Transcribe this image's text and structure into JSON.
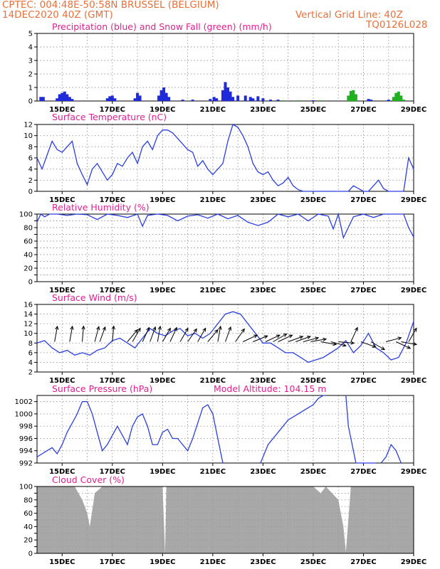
{
  "header": {
    "line1": "CPTEC:  004:48E-50:58N  BRUSSEL (BELGIUM)",
    "line2": "14DEC2020 40Z (GMT)",
    "grid_note": "Vertical Grid Line: 40Z",
    "product_code": "TQ0126L028"
  },
  "x_axis": {
    "labels": [
      "15DEC",
      "17DEC",
      "19DEC",
      "21DEC",
      "23DEC",
      "25DEC",
      "27DEC",
      "29DEC"
    ],
    "day_positions": [
      1,
      3,
      5,
      7,
      9,
      11,
      13,
      15
    ],
    "day_range": [
      0,
      15
    ]
  },
  "colors": {
    "header": "#e8703a",
    "title": "#e0208f",
    "line": "#2a3fe0",
    "precip": "#1f2bd8",
    "snow": "#20b020",
    "cloud": "#a8a8a8"
  },
  "chart_data": [
    {
      "key": "precip",
      "type": "bar",
      "title": "Precipitation (blue) and Snow Fall (green) (mm/h)",
      "ylim": [
        0,
        5
      ],
      "yticks": [
        0,
        1,
        2,
        3,
        4,
        5
      ],
      "series": [
        {
          "name": "Precipitation",
          "color": "blue",
          "points": [
            [
              0.15,
              0.3
            ],
            [
              0.25,
              0.3
            ],
            [
              0.8,
              0.2
            ],
            [
              0.9,
              0.5
            ],
            [
              1.0,
              0.6
            ],
            [
              1.1,
              0.7
            ],
            [
              1.2,
              0.5
            ],
            [
              1.3,
              0.3
            ],
            [
              1.4,
              0.15
            ],
            [
              2.8,
              0.2
            ],
            [
              2.9,
              0.35
            ],
            [
              3.0,
              0.4
            ],
            [
              3.1,
              0.2
            ],
            [
              3.9,
              0.2
            ],
            [
              4.0,
              0.6
            ],
            [
              4.1,
              0.4
            ],
            [
              4.85,
              0.4
            ],
            [
              4.95,
              0.8
            ],
            [
              5.05,
              1.0
            ],
            [
              5.15,
              0.6
            ],
            [
              5.25,
              0.3
            ],
            [
              5.8,
              0.1
            ],
            [
              6.2,
              0.1
            ],
            [
              6.9,
              0.15
            ],
            [
              7.05,
              0.3
            ],
            [
              7.15,
              0.2
            ],
            [
              7.4,
              0.8
            ],
            [
              7.5,
              1.4
            ],
            [
              7.6,
              1.0
            ],
            [
              7.7,
              0.7
            ],
            [
              7.8,
              0.3
            ],
            [
              8.0,
              0.4
            ],
            [
              8.3,
              0.4
            ],
            [
              8.5,
              0.3
            ],
            [
              8.6,
              0.2
            ],
            [
              8.8,
              0.35
            ],
            [
              9.0,
              0.2
            ],
            [
              9.3,
              0.1
            ],
            [
              9.6,
              0.1
            ],
            [
              11.0,
              0.05
            ],
            [
              13.2,
              0.15
            ],
            [
              13.3,
              0.1
            ],
            [
              14.0,
              0.1
            ]
          ]
        },
        {
          "name": "Snow Fall",
          "color": "green",
          "points": [
            [
              9.8,
              0.05
            ],
            [
              10.4,
              0.05
            ],
            [
              11.3,
              0.05
            ],
            [
              12.4,
              0.4
            ],
            [
              12.5,
              0.75
            ],
            [
              12.6,
              0.8
            ],
            [
              12.7,
              0.5
            ],
            [
              14.2,
              0.3
            ],
            [
              14.3,
              0.6
            ],
            [
              14.4,
              0.7
            ],
            [
              14.5,
              0.4
            ],
            [
              14.6,
              0.1
            ]
          ]
        }
      ]
    },
    {
      "key": "temp",
      "type": "line",
      "title": "Surface Temperature (nC)",
      "ylim": [
        0,
        12
      ],
      "yticks": [
        0,
        2,
        4,
        6,
        8,
        10,
        12
      ],
      "x": [
        0,
        0.2,
        0.4,
        0.6,
        0.8,
        1.0,
        1.2,
        1.4,
        1.6,
        1.8,
        2.0,
        2.2,
        2.4,
        2.6,
        2.8,
        3.0,
        3.2,
        3.4,
        3.6,
        3.8,
        4.0,
        4.2,
        4.4,
        4.6,
        4.8,
        5.0,
        5.2,
        5.4,
        5.6,
        5.8,
        6.0,
        6.2,
        6.4,
        6.6,
        6.8,
        7.0,
        7.2,
        7.4,
        7.6,
        7.8,
        8.0,
        8.2,
        8.4,
        8.6,
        8.8,
        9.0,
        9.2,
        9.4,
        9.6,
        9.8,
        10.0,
        10.2,
        10.4,
        10.6,
        10.8,
        11.0,
        11.2,
        11.4,
        11.6,
        11.8,
        12.0,
        12.2,
        12.4,
        12.6,
        12.8,
        13.0,
        13.2,
        13.4,
        13.6,
        13.8,
        14.0,
        14.2,
        14.4,
        14.6,
        14.8,
        15.0
      ],
      "y": [
        6,
        4,
        6.5,
        9,
        7.5,
        7,
        8,
        9,
        5,
        3,
        1.2,
        4,
        5,
        3.5,
        2,
        3,
        5,
        4.5,
        6,
        7,
        5,
        8,
        9,
        7.5,
        10,
        11,
        11,
        10.5,
        9.5,
        8.5,
        7.5,
        7,
        4.5,
        5.5,
        4,
        3,
        4,
        5,
        9,
        12,
        11.5,
        10,
        8,
        5,
        3.5,
        3,
        3.5,
        2,
        1,
        1.5,
        2.5,
        1,
        0.3,
        0,
        0,
        0,
        0,
        0,
        0,
        0,
        0,
        0,
        0,
        1,
        0.5,
        0,
        0,
        1,
        2,
        0.5,
        0,
        0,
        0,
        0,
        6,
        4
      ]
    },
    {
      "key": "rh",
      "type": "line",
      "title": "Relative Humidity (%)",
      "ylim": [
        0,
        100
      ],
      "yticks": [
        0,
        10,
        20,
        30,
        40,
        50,
        60,
        70,
        80,
        90,
        100
      ],
      "x": [
        0,
        0.15,
        0.3,
        0.5,
        0.8,
        1.2,
        1.6,
        2.0,
        2.4,
        2.8,
        3.2,
        3.6,
        4.0,
        4.2,
        4.4,
        4.8,
        5.2,
        5.6,
        6.0,
        6.4,
        6.8,
        7.2,
        7.6,
        8.0,
        8.4,
        8.8,
        9.2,
        9.6,
        10.0,
        10.4,
        10.8,
        11.2,
        11.6,
        11.8,
        12.0,
        12.2,
        12.6,
        13.0,
        13.4,
        13.8,
        14.2,
        14.6,
        14.8,
        15.0
      ],
      "y": [
        88,
        100,
        96,
        100,
        100,
        98,
        100,
        99,
        92,
        100,
        98,
        95,
        100,
        82,
        98,
        100,
        98,
        90,
        97,
        99,
        94,
        100,
        93,
        98,
        88,
        83,
        88,
        100,
        96,
        100,
        90,
        100,
        97,
        78,
        100,
        65,
        96,
        100,
        95,
        100,
        100,
        100,
        80,
        66
      ]
    },
    {
      "key": "wind",
      "type": "line",
      "title": "Surface Wind (m/s)",
      "ylim": [
        2,
        16
      ],
      "yticks": [
        2,
        4,
        6,
        8,
        10,
        12,
        14,
        16
      ],
      "x": [
        0,
        0.3,
        0.6,
        0.9,
        1.2,
        1.5,
        1.8,
        2.1,
        2.4,
        2.7,
        3.0,
        3.3,
        3.6,
        3.9,
        4.2,
        4.5,
        4.8,
        5.1,
        5.4,
        5.7,
        6.0,
        6.3,
        6.6,
        6.9,
        7.2,
        7.5,
        7.8,
        8.1,
        8.4,
        8.7,
        9.0,
        9.3,
        9.6,
        9.9,
        10.2,
        10.5,
        10.8,
        11.1,
        11.4,
        11.7,
        12.0,
        12.3,
        12.6,
        12.9,
        13.2,
        13.5,
        13.8,
        14.1,
        14.4,
        14.7,
        15.0
      ],
      "y": [
        8,
        8.5,
        7,
        6,
        6.5,
        5.5,
        6,
        5.5,
        6.5,
        7,
        8.5,
        9,
        8,
        7,
        9,
        11,
        10,
        9.5,
        10.5,
        11,
        9.5,
        10,
        9,
        10,
        12,
        14,
        14.5,
        14,
        12,
        10,
        8,
        8,
        7,
        6,
        6,
        5,
        4,
        4.5,
        5,
        6,
        7,
        8.5,
        6,
        7.5,
        10,
        7,
        6,
        4.5,
        5,
        8,
        12.5
      ],
      "arrows_x": [
        0.7,
        1.3,
        1.8,
        2.3,
        2.5,
        3.0,
        3.6,
        3.8,
        4.2,
        4.5,
        4.8,
        5.0,
        5.3,
        5.7,
        6.0,
        6.4,
        6.8,
        7.2,
        7.5,
        7.9,
        8.2,
        8.6,
        9.1,
        9.4,
        9.6,
        10.0,
        10.3,
        10.6,
        10.9,
        11.3,
        11.7,
        12.0,
        12.5,
        12.9,
        13.3,
        13.9,
        14.3,
        14.5,
        14.8
      ],
      "arrows_dir": [
        80,
        80,
        85,
        75,
        70,
        85,
        50,
        60,
        65,
        70,
        80,
        60,
        65,
        60,
        55,
        60,
        50,
        80,
        70,
        55,
        25,
        22,
        25,
        30,
        25,
        20,
        20,
        15,
        10,
        -10,
        -15,
        -5,
        65,
        -20,
        -30,
        15,
        -25,
        -10,
        60
      ]
    },
    {
      "key": "press",
      "type": "line",
      "title": "Surface Pressure (hPa)",
      "annotation": "Model Altitude: 104.15 m",
      "ylim": [
        992,
        1003
      ],
      "yticks": [
        992,
        994,
        996,
        998,
        1000,
        1002
      ],
      "segments": [
        {
          "x": [
            0,
            0.2,
            0.4,
            0.6,
            0.8,
            1.0,
            1.2,
            1.4,
            1.6,
            1.8,
            2.0,
            2.2,
            2.4,
            2.6,
            2.8,
            3.0,
            3.2,
            3.4,
            3.6,
            3.8,
            4.0,
            4.2,
            4.4,
            4.6,
            4.8,
            5.0,
            5.2,
            5.4,
            5.6,
            5.8,
            6.0,
            6.2,
            6.4,
            6.6,
            6.8,
            7.0,
            7.2,
            7.4
          ],
          "y": [
            993,
            993.5,
            994,
            994.5,
            993.5,
            995,
            997,
            998.5,
            1000,
            1002,
            1002,
            1000,
            997,
            994,
            995,
            996.5,
            998,
            996.5,
            995,
            998,
            999.5,
            1000,
            998,
            995,
            995,
            997,
            997.5,
            996,
            996,
            995,
            994,
            996,
            998.5,
            1001,
            1001.5,
            1000,
            996,
            992
          ]
        },
        {
          "x": [
            8.9,
            9.2,
            9.6,
            10.0,
            10.4,
            10.8,
            11.0,
            11.2,
            11.4,
            11.5
          ],
          "y": [
            992,
            995,
            997,
            999,
            1000,
            1001,
            1001.5,
            1002.5,
            1003,
            1003
          ]
        },
        {
          "x": [
            12.3,
            12.4,
            12.7,
            13.0,
            13.2,
            13.5
          ],
          "y": [
            1003,
            998,
            992,
            992,
            992,
            992
          ]
        },
        {
          "x": [
            13.7,
            13.9,
            14.1,
            14.3,
            14.5
          ],
          "y": [
            992,
            993,
            995,
            994,
            992
          ]
        }
      ]
    },
    {
      "key": "cloud",
      "type": "area",
      "title": "Cloud Cover (%)",
      "ylim": [
        0,
        100
      ],
      "yticks": [
        0,
        10,
        20,
        30,
        40,
        50,
        60,
        70,
        80,
        90,
        100
      ],
      "x": [
        0,
        0.5,
        1.0,
        1.5,
        1.8,
        2.0,
        2.1,
        2.3,
        2.6,
        3.0,
        3.5,
        4.0,
        4.5,
        5.0,
        5.1,
        5.15,
        5.2,
        5.5,
        6.0,
        6.5,
        7.0,
        7.5,
        8.0,
        8.5,
        9.0,
        9.5,
        10.0,
        10.5,
        11.0,
        11.3,
        11.5,
        12.0,
        12.2,
        12.3,
        12.5,
        13.0,
        13.5,
        14.0,
        14.5,
        15.0
      ],
      "y": [
        100,
        100,
        100,
        100,
        80,
        60,
        40,
        90,
        100,
        100,
        100,
        100,
        100,
        100,
        0,
        100,
        100,
        100,
        100,
        100,
        100,
        100,
        100,
        100,
        100,
        100,
        100,
        100,
        100,
        90,
        100,
        80,
        40,
        2,
        100,
        100,
        100,
        100,
        100,
        100
      ]
    }
  ]
}
